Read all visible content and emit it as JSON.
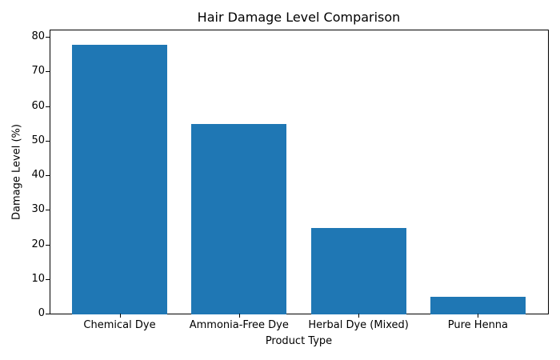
{
  "chart_data": {
    "type": "bar",
    "title": "Hair Damage Level Comparison",
    "xlabel": "Product Type",
    "ylabel": "Damage Level (%)",
    "categories": [
      "Chemical Dye",
      "Ammonia-Free Dye",
      "Herbal Dye (Mixed)",
      "Pure Henna"
    ],
    "values": [
      78,
      55,
      25,
      5
    ],
    "ylim": [
      0,
      82
    ],
    "yticks": [
      "0",
      "10",
      "20",
      "30",
      "40",
      "50",
      "60",
      "70",
      "80"
    ],
    "grid": false,
    "legend": null,
    "bar_color": "#1f77b4"
  }
}
